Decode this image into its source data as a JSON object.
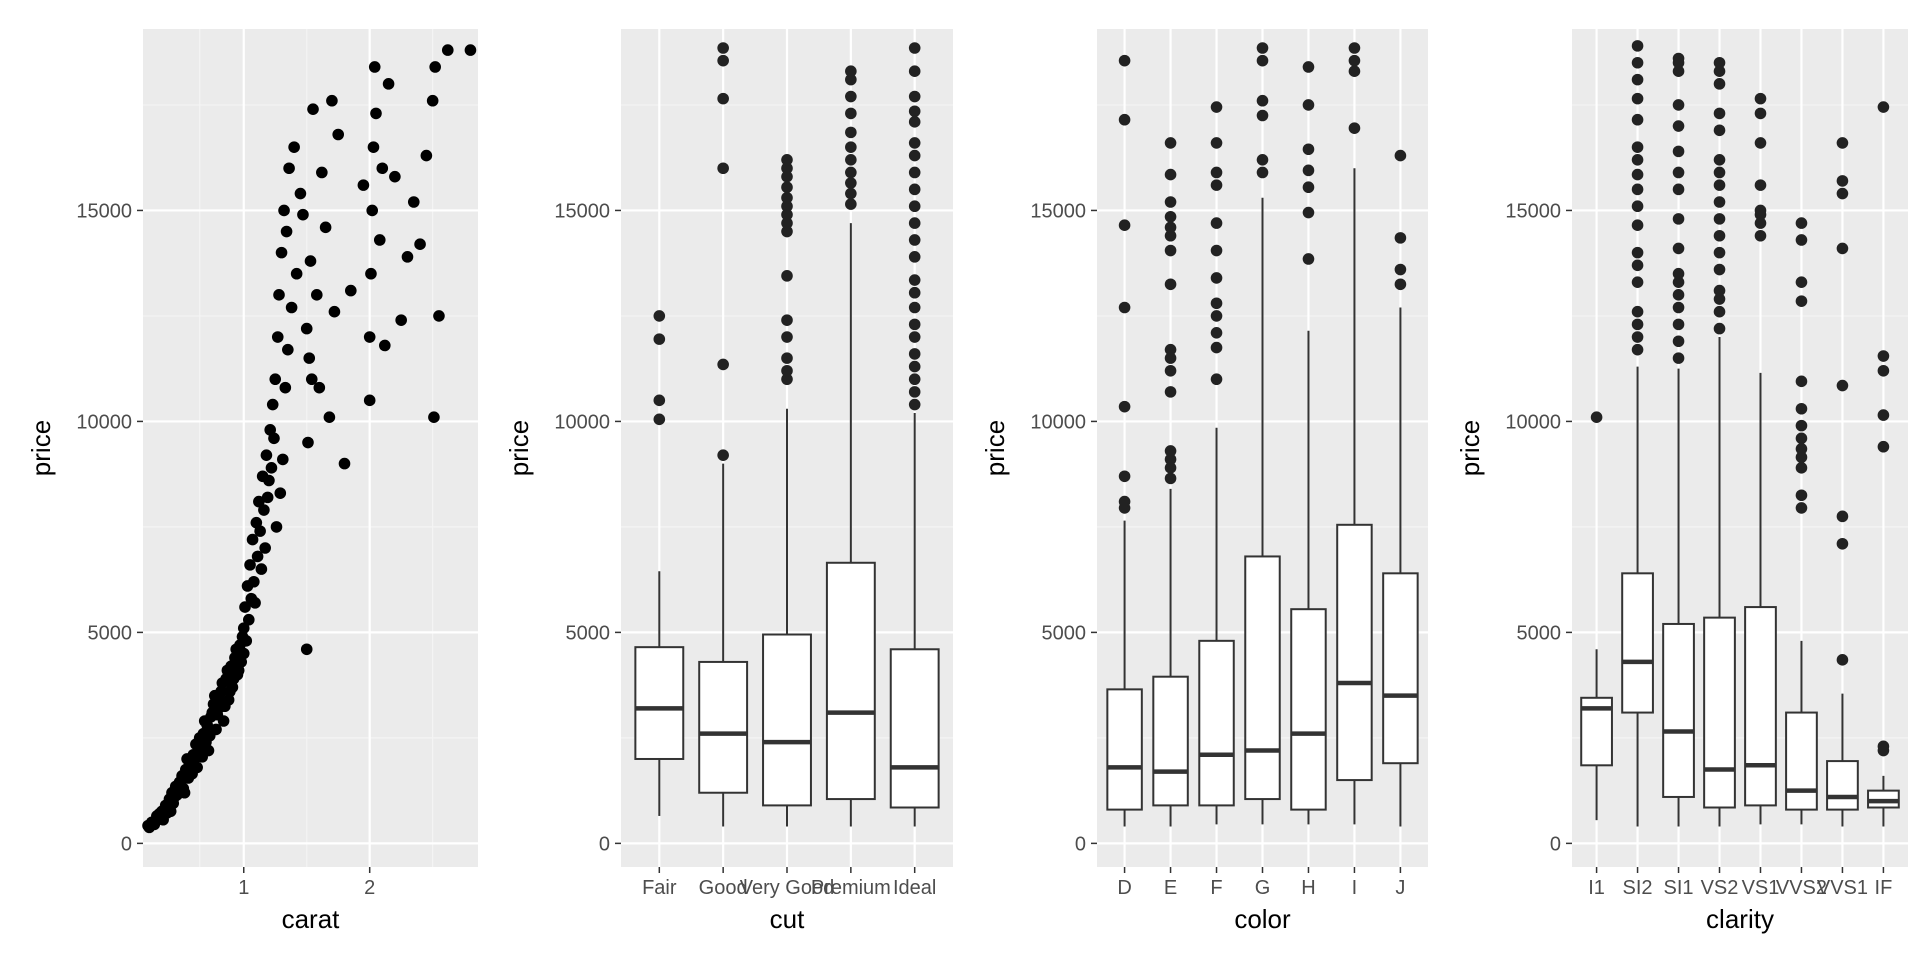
{
  "colors": {
    "panel_background": "#ebebeb",
    "grid_major": "#ffffff",
    "grid_minor": "#f4f4f4",
    "point": "#000000",
    "outlier": "#222222",
    "box_fill": "#ffffff",
    "box_line": "#333333",
    "tick_text": "#4d4d4d"
  },
  "chart_data": [
    {
      "type": "scatter",
      "xlabel": "carat",
      "ylabel": "price",
      "xlim": [
        0.2,
        2.86
      ],
      "ylim": [
        -560,
        19300
      ],
      "x_ticks": [
        1,
        2
      ],
      "y_ticks": [
        0,
        5000,
        10000,
        15000
      ],
      "grid": true,
      "points": [
        [
          0.24,
          420
        ],
        [
          0.27,
          500
        ],
        [
          0.3,
          520
        ],
        [
          0.31,
          650
        ],
        [
          0.33,
          700
        ],
        [
          0.35,
          760
        ],
        [
          0.36,
          560
        ],
        [
          0.38,
          900
        ],
        [
          0.4,
          880
        ],
        [
          0.41,
          1050
        ],
        [
          0.42,
          760
        ],
        [
          0.43,
          1200
        ],
        [
          0.45,
          1100
        ],
        [
          0.46,
          1350
        ],
        [
          0.5,
          1400
        ],
        [
          0.51,
          1600
        ],
        [
          0.52,
          1300
        ],
        [
          0.54,
          1750
        ],
        [
          0.55,
          2000
        ],
        [
          0.56,
          1550
        ],
        [
          0.58,
          1900
        ],
        [
          0.6,
          2100
        ],
        [
          0.62,
          2350
        ],
        [
          0.63,
          1800
        ],
        [
          0.65,
          2500
        ],
        [
          0.7,
          2400
        ],
        [
          0.71,
          2800
        ],
        [
          0.72,
          2200
        ],
        [
          0.74,
          3000
        ],
        [
          0.76,
          3300
        ],
        [
          0.78,
          2700
        ],
        [
          0.8,
          3200
        ],
        [
          0.82,
          3600
        ],
        [
          0.84,
          2900
        ],
        [
          0.86,
          3900
        ],
        [
          0.88,
          3400
        ],
        [
          0.9,
          4200
        ],
        [
          0.91,
          3700
        ],
        [
          0.93,
          4400
        ],
        [
          0.95,
          4000
        ],
        [
          0.97,
          4700
        ],
        [
          0.98,
          4300
        ],
        [
          1.0,
          5100
        ],
        [
          1.0,
          4500
        ],
        [
          1.01,
          5600
        ],
        [
          1.02,
          4800
        ],
        [
          1.03,
          6100
        ],
        [
          1.04,
          5300
        ],
        [
          1.05,
          6600
        ],
        [
          1.06,
          5800
        ],
        [
          1.07,
          7200
        ],
        [
          1.08,
          6200
        ],
        [
          1.1,
          7600
        ],
        [
          1.11,
          6800
        ],
        [
          1.12,
          8100
        ],
        [
          1.13,
          7400
        ],
        [
          1.15,
          8700
        ],
        [
          1.16,
          7900
        ],
        [
          1.18,
          9200
        ],
        [
          1.2,
          8600
        ],
        [
          1.21,
          9800
        ],
        [
          1.23,
          10400
        ],
        [
          1.25,
          11000
        ],
        [
          1.27,
          12000
        ],
        [
          1.28,
          13000
        ],
        [
          1.3,
          14000
        ],
        [
          1.32,
          15000
        ],
        [
          1.34,
          14500
        ],
        [
          1.36,
          16000
        ],
        [
          1.4,
          16500
        ],
        [
          1.45,
          15400
        ],
        [
          1.5,
          12200
        ],
        [
          1.5,
          4600
        ],
        [
          1.51,
          9500
        ],
        [
          1.52,
          11500
        ],
        [
          1.53,
          13800
        ],
        [
          1.55,
          17400
        ],
        [
          1.6,
          10800
        ],
        [
          1.62,
          15900
        ],
        [
          1.68,
          10100
        ],
        [
          1.7,
          17600
        ],
        [
          1.72,
          12600
        ],
        [
          1.8,
          9000
        ],
        [
          2.0,
          10500
        ],
        [
          2.0,
          12000
        ],
        [
          2.01,
          13500
        ],
        [
          2.02,
          15000
        ],
        [
          2.03,
          16500
        ],
        [
          2.04,
          18400
        ],
        [
          2.05,
          17300
        ],
        [
          2.08,
          14300
        ],
        [
          2.1,
          16000
        ],
        [
          2.12,
          11800
        ],
        [
          2.15,
          18000
        ],
        [
          2.2,
          15800
        ],
        [
          2.25,
          12400
        ],
        [
          2.3,
          13900
        ],
        [
          2.35,
          15200
        ],
        [
          2.4,
          14200
        ],
        [
          2.45,
          16300
        ],
        [
          2.5,
          17600
        ],
        [
          2.51,
          10100
        ],
        [
          2.52,
          18400
        ],
        [
          2.55,
          12500
        ],
        [
          2.62,
          18800
        ],
        [
          2.8,
          18800
        ],
        [
          0.25,
          380
        ],
        [
          0.29,
          450
        ],
        [
          0.32,
          580
        ],
        [
          0.34,
          620
        ],
        [
          0.37,
          800
        ],
        [
          0.39,
          720
        ],
        [
          0.44,
          950
        ],
        [
          0.47,
          1150
        ],
        [
          0.48,
          1250
        ],
        [
          0.49,
          1450
        ],
        [
          0.53,
          1200
        ],
        [
          0.57,
          1700
        ],
        [
          0.59,
          1650
        ],
        [
          0.61,
          2000
        ],
        [
          0.64,
          2150
        ],
        [
          0.66,
          2300
        ],
        [
          0.67,
          2050
        ],
        [
          0.68,
          2600
        ],
        [
          0.69,
          2900
        ],
        [
          0.73,
          2550
        ],
        [
          0.75,
          3100
        ],
        [
          0.77,
          3500
        ],
        [
          0.79,
          3050
        ],
        [
          0.81,
          3400
        ],
        [
          0.83,
          3800
        ],
        [
          0.85,
          3250
        ],
        [
          0.87,
          4100
        ],
        [
          0.89,
          3600
        ],
        [
          0.92,
          3900
        ],
        [
          0.94,
          4600
        ],
        [
          0.96,
          4100
        ],
        [
          0.99,
          4900
        ],
        [
          1.09,
          5700
        ],
        [
          1.14,
          6500
        ],
        [
          1.17,
          7000
        ],
        [
          1.19,
          8200
        ],
        [
          1.22,
          8900
        ],
        [
          1.24,
          9600
        ],
        [
          1.26,
          7500
        ],
        [
          1.29,
          8300
        ],
        [
          1.31,
          9100
        ],
        [
          1.33,
          10800
        ],
        [
          1.35,
          11700
        ],
        [
          1.38,
          12700
        ],
        [
          1.42,
          13500
        ],
        [
          1.47,
          14900
        ],
        [
          1.54,
          11000
        ],
        [
          1.58,
          13000
        ],
        [
          1.65,
          14600
        ],
        [
          1.75,
          16800
        ],
        [
          1.85,
          13100
        ],
        [
          1.95,
          15600
        ]
      ]
    },
    {
      "type": "box",
      "xlabel": "cut",
      "ylabel": "price",
      "ylim": [
        -560,
        19300
      ],
      "y_ticks": [
        0,
        5000,
        10000,
        15000
      ],
      "grid": true,
      "categories": [
        "Fair",
        "Good",
        "Very Good",
        "Premium",
        "Ideal"
      ],
      "boxes": [
        {
          "lower": 650,
          "q1": 2000,
          "median": 3200,
          "q3": 4650,
          "upper": 6450,
          "outliers": [
            10050,
            10500,
            11950,
            12500
          ]
        },
        {
          "lower": 400,
          "q1": 1200,
          "median": 2600,
          "q3": 4300,
          "upper": 9000,
          "outliers": [
            9200,
            11350,
            16000,
            17650,
            18550,
            18850
          ]
        },
        {
          "lower": 400,
          "q1": 900,
          "median": 2400,
          "q3": 4950,
          "upper": 10300,
          "outliers": [
            11000,
            11200,
            11500,
            12000,
            12400,
            13450,
            14500,
            14700,
            14900,
            15100,
            15300,
            15550,
            15800,
            16000,
            16200
          ]
        },
        {
          "lower": 400,
          "q1": 1050,
          "median": 3100,
          "q3": 6650,
          "upper": 14700,
          "outliers": [
            15150,
            15400,
            15650,
            15900,
            16200,
            16500,
            16850,
            17300,
            17700,
            18100,
            18300
          ]
        },
        {
          "lower": 400,
          "q1": 850,
          "median": 1800,
          "q3": 4600,
          "upper": 10200,
          "outliers": [
            10400,
            10700,
            11000,
            11300,
            11600,
            12000,
            12300,
            12700,
            13050,
            13350,
            13900,
            14300,
            14700,
            15100,
            15500,
            15900,
            16300,
            16600,
            17100,
            17350,
            17700,
            18300,
            18850
          ]
        }
      ]
    },
    {
      "type": "box",
      "xlabel": "color",
      "ylabel": "price",
      "ylim": [
        -560,
        19300
      ],
      "y_ticks": [
        0,
        5000,
        10000,
        15000
      ],
      "grid": true,
      "categories": [
        "D",
        "E",
        "F",
        "G",
        "H",
        "I",
        "J"
      ],
      "boxes": [
        {
          "lower": 400,
          "q1": 800,
          "median": 1800,
          "q3": 3650,
          "upper": 7650,
          "outliers": [
            7950,
            8100,
            8700,
            10350,
            12700,
            14650,
            17150,
            18550
          ]
        },
        {
          "lower": 400,
          "q1": 900,
          "median": 1700,
          "q3": 3950,
          "upper": 8400,
          "outliers": [
            8650,
            8900,
            9100,
            9300,
            10700,
            11200,
            11500,
            11700,
            13250,
            14050,
            14400,
            14600,
            14850,
            15200,
            15850,
            16600
          ]
        },
        {
          "lower": 450,
          "q1": 900,
          "median": 2100,
          "q3": 4800,
          "upper": 9850,
          "outliers": [
            11000,
            11750,
            12100,
            12500,
            12800,
            13400,
            14050,
            14700,
            15600,
            15900,
            16600,
            17450
          ]
        },
        {
          "lower": 450,
          "q1": 1050,
          "median": 2200,
          "q3": 6800,
          "upper": 15300,
          "outliers": [
            15900,
            16200,
            17250,
            17600,
            18550,
            18850
          ]
        },
        {
          "lower": 450,
          "q1": 800,
          "median": 2600,
          "q3": 5550,
          "upper": 12150,
          "outliers": [
            13850,
            14950,
            15550,
            15950,
            16450,
            17500,
            18400
          ]
        },
        {
          "lower": 450,
          "q1": 1500,
          "median": 3800,
          "q3": 7550,
          "upper": 16000,
          "outliers": [
            16950,
            18300,
            18550,
            18850
          ]
        },
        {
          "lower": 400,
          "q1": 1900,
          "median": 3500,
          "q3": 6400,
          "upper": 12700,
          "outliers": [
            13250,
            13600,
            14350,
            16300
          ]
        }
      ]
    },
    {
      "type": "box",
      "xlabel": "clarity",
      "ylabel": "price",
      "ylim": [
        -560,
        19300
      ],
      "y_ticks": [
        0,
        5000,
        10000,
        15000
      ],
      "grid": true,
      "categories": [
        "I1",
        "SI2",
        "SI1",
        "VS2",
        "VS1",
        "VVS2",
        "VVS1",
        "IF"
      ],
      "boxes": [
        {
          "lower": 550,
          "q1": 1850,
          "median": 3200,
          "q3": 3450,
          "upper": 4600,
          "outliers": [
            10100
          ]
        },
        {
          "lower": 400,
          "q1": 3100,
          "median": 4300,
          "q3": 6400,
          "upper": 11300,
          "outliers": [
            11700,
            12000,
            12300,
            12600,
            13300,
            13700,
            14000,
            14650,
            15100,
            15500,
            15850,
            16200,
            16500,
            17150,
            17650,
            18100,
            18500,
            18900
          ]
        },
        {
          "lower": 400,
          "q1": 1100,
          "median": 2650,
          "q3": 5200,
          "upper": 11250,
          "outliers": [
            11500,
            11900,
            12300,
            12700,
            13000,
            13300,
            13500,
            14100,
            14800,
            15500,
            15900,
            16400,
            17000,
            17500,
            18300,
            18500,
            18600
          ]
        },
        {
          "lower": 400,
          "q1": 850,
          "median": 1750,
          "q3": 5350,
          "upper": 12000,
          "outliers": [
            12200,
            12600,
            12900,
            13100,
            13600,
            14000,
            14400,
            14800,
            15200,
            15600,
            15900,
            16200,
            16900,
            17300,
            18000,
            18300,
            18500
          ]
        },
        {
          "lower": 450,
          "q1": 900,
          "median": 1850,
          "q3": 5600,
          "upper": 11150,
          "outliers": [
            14400,
            14700,
            14900,
            15000,
            15600,
            16600,
            17300,
            17650
          ]
        },
        {
          "lower": 450,
          "q1": 800,
          "median": 1250,
          "q3": 3100,
          "upper": 4800,
          "outliers": [
            7950,
            8250,
            8900,
            9150,
            9350,
            9600,
            9900,
            10300,
            10950,
            12850,
            13300,
            14300,
            14700
          ]
        },
        {
          "lower": 400,
          "q1": 800,
          "median": 1100,
          "q3": 1950,
          "upper": 3550,
          "outliers": [
            4350,
            7100,
            7750,
            10850,
            14100,
            15400,
            15700,
            16600
          ]
        },
        {
          "lower": 400,
          "q1": 850,
          "median": 1000,
          "q3": 1250,
          "upper": 1600,
          "outliers": [
            2200,
            2300,
            9400,
            10150,
            11200,
            11550,
            17450
          ]
        }
      ]
    }
  ]
}
